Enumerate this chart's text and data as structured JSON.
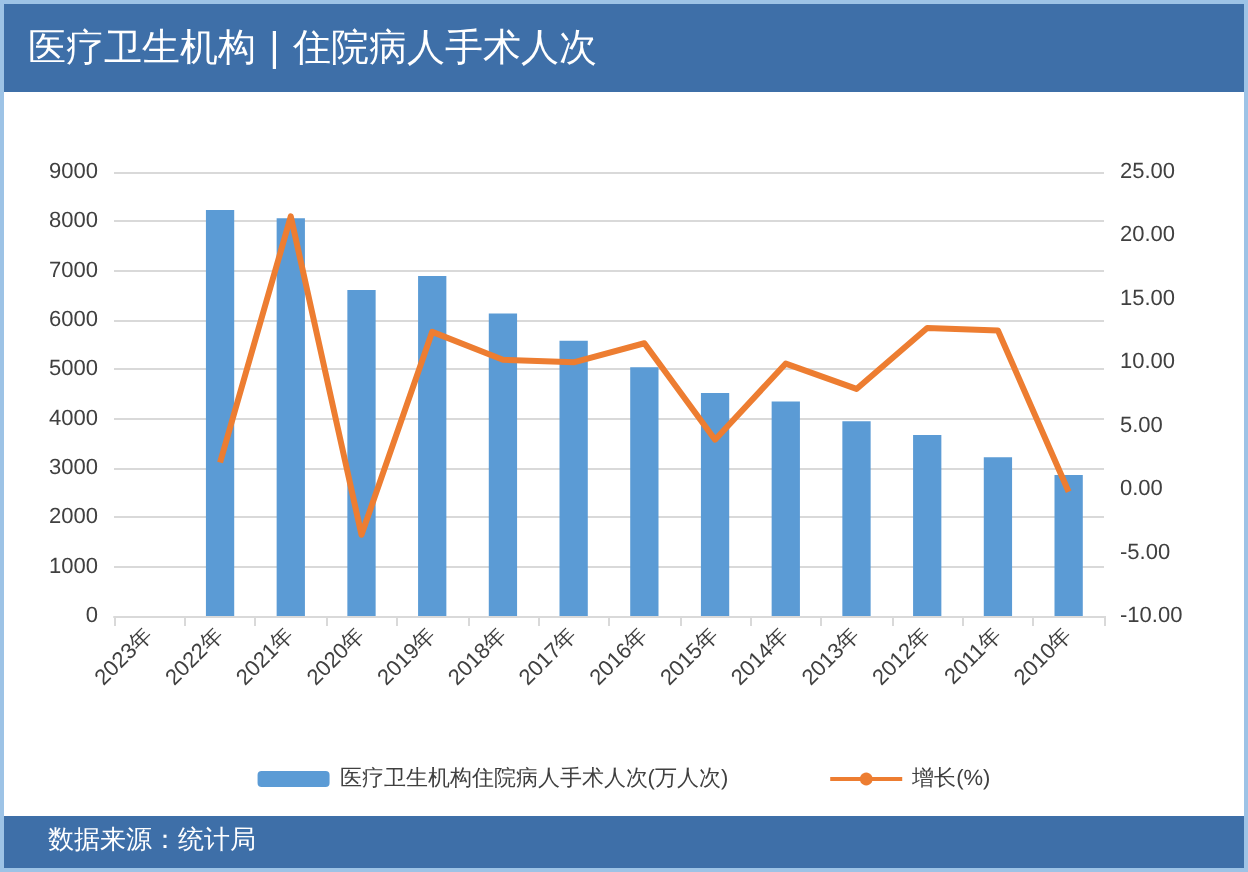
{
  "chart_data": {
    "type": "bar",
    "title": "医疗卫生机构 | 住院病人手术人次",
    "categories": [
      "2023年",
      "2022年",
      "2021年",
      "2020年",
      "2019年",
      "2018年",
      "2017年",
      "2016年",
      "2015年",
      "2014年",
      "2013年",
      "2012年",
      "2011年",
      "2010年"
    ],
    "series": [
      {
        "name": "医疗卫生机构住院病人手术人次(万人次)",
        "color": "#5b9bd5",
        "values": [
          null,
          8230,
          8060,
          6610,
          6890,
          6130,
          5580,
          5040,
          4520,
          4350,
          3950,
          3670,
          3220,
          2860
        ]
      },
      {
        "name": "增长(%)",
        "type": "line",
        "axis": "y2",
        "color": "#ed7d31",
        "values": [
          null,
          2.1,
          21.5,
          -3.6,
          12.4,
          10.2,
          10.0,
          11.5,
          3.9,
          9.9,
          7.9,
          12.7,
          12.5,
          -0.2
        ]
      }
    ],
    "ylim": [
      0,
      9000
    ],
    "yticks": [
      0,
      1000,
      2000,
      3000,
      4000,
      5000,
      6000,
      7000,
      8000,
      9000
    ],
    "y2lim": [
      -10,
      25
    ],
    "y2ticks": [
      {
        "value": -10,
        "label": "-10.00"
      },
      {
        "value": -5,
        "label": "-5.00"
      },
      {
        "value": 0,
        "label": "0.00"
      },
      {
        "value": 5,
        "label": "5.00"
      },
      {
        "value": 10,
        "label": "10.00"
      },
      {
        "value": 15,
        "label": "15.00"
      },
      {
        "value": 20,
        "label": "20.00"
      },
      {
        "value": 25,
        "label": "25.00"
      }
    ],
    "grid": "y",
    "legend": "bottom",
    "marker": "none",
    "line_style": "solid",
    "annotations": [
      "数据来源：统计局"
    ]
  }
}
